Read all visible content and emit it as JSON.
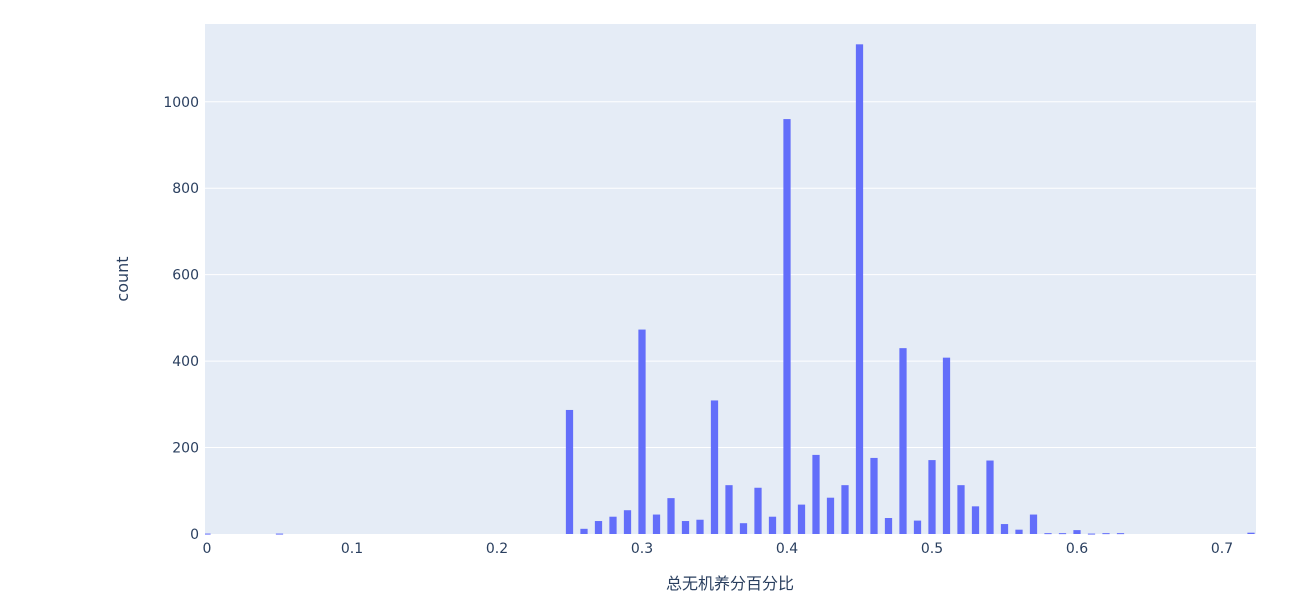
{
  "chart_data": {
    "type": "bar",
    "title": "",
    "xlabel": "总无机养分百分比",
    "ylabel": "count",
    "xlim": [
      0,
      0.72
    ],
    "ylim": [
      0,
      1180
    ],
    "grid": true,
    "bar_color": "#636efa",
    "plot_background": "#e5ecf6",
    "x_ticks": [
      0,
      0.1,
      0.2,
      0.3,
      0.4,
      0.5,
      0.6,
      0.7
    ],
    "x_tick_labels": [
      "0",
      "0.1",
      "0.2",
      "0.3",
      "0.4",
      "0.5",
      "0.6",
      "0.7"
    ],
    "y_ticks": [
      0,
      200,
      400,
      600,
      800,
      1000
    ],
    "y_tick_labels": [
      "0",
      "200",
      "400",
      "600",
      "800",
      "1000"
    ],
    "x": [
      0.0,
      0.05,
      0.25,
      0.26,
      0.27,
      0.28,
      0.29,
      0.3,
      0.31,
      0.32,
      0.33,
      0.34,
      0.35,
      0.36,
      0.37,
      0.38,
      0.39,
      0.4,
      0.41,
      0.42,
      0.43,
      0.44,
      0.45,
      0.46,
      0.47,
      0.48,
      0.49,
      0.5,
      0.51,
      0.52,
      0.53,
      0.54,
      0.55,
      0.56,
      0.57,
      0.58,
      0.59,
      0.6,
      0.61,
      0.62,
      0.63,
      0.72
    ],
    "values": [
      1,
      1,
      287,
      12,
      30,
      40,
      55,
      473,
      45,
      83,
      30,
      33,
      309,
      113,
      25,
      107,
      40,
      960,
      68,
      183,
      84,
      113,
      1133,
      176,
      37,
      430,
      31,
      171,
      408,
      113,
      64,
      170,
      23,
      10,
      45,
      2,
      2,
      9,
      1,
      2,
      2,
      3
    ]
  }
}
